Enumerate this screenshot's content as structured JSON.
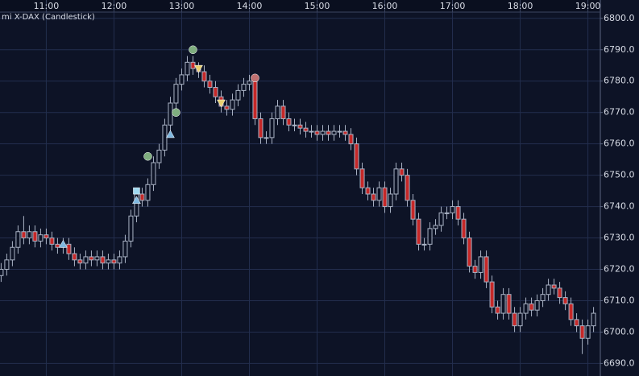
{
  "chart_data": {
    "type": "candlestick",
    "title": "mi X-DAX (Candlestick)",
    "x": [
      620,
      625,
      630,
      635,
      640,
      645,
      650,
      655,
      660,
      665,
      670,
      675,
      680,
      685,
      690,
      695,
      700,
      705,
      710,
      715,
      720,
      725,
      730,
      735,
      740,
      745,
      750,
      755,
      760,
      765,
      770,
      775,
      780,
      785,
      790,
      795,
      800,
      805,
      810,
      815,
      820,
      825,
      830,
      835,
      840,
      845,
      850,
      855,
      860,
      865,
      870,
      875,
      880,
      885,
      890,
      895,
      900,
      905,
      910,
      915,
      920,
      925,
      930,
      935,
      940,
      945,
      950,
      955,
      960,
      965,
      970,
      975,
      980,
      985,
      990,
      995,
      1000,
      1005,
      1010,
      1015,
      1020,
      1025,
      1030,
      1035,
      1040,
      1045,
      1050,
      1055,
      1060,
      1065,
      1070,
      1075,
      1080,
      1085,
      1090,
      1095,
      1100,
      1105,
      1110,
      1115,
      1120,
      1125,
      1130,
      1135,
      1140,
      1145
    ],
    "open": [
      6718,
      6720,
      6723,
      6727,
      6732,
      6730,
      6732,
      6729,
      6731,
      6730,
      6728,
      6727,
      6728,
      6725,
      6723,
      6722,
      6724,
      6723,
      6724,
      6722,
      6723,
      6722,
      6724,
      6729,
      6737,
      6744,
      6742,
      6747,
      6754,
      6758,
      6766,
      6773,
      6779,
      6782,
      6786,
      6784,
      6783,
      6780,
      6778,
      6775,
      6772,
      6771,
      6774,
      6777,
      6779,
      6780,
      6768,
      6762,
      6762,
      6768,
      6772,
      6768,
      6766,
      6766,
      6765,
      6764,
      6764,
      6763,
      6764,
      6763,
      6764,
      6764,
      6763,
      6760,
      6752,
      6746,
      6744,
      6742,
      6746,
      6740,
      6744,
      6752,
      6750,
      6742,
      6736,
      6728,
      6728,
      6733,
      6734,
      6738,
      6738,
      6740,
      6736,
      6730,
      6721,
      6719,
      6724,
      6716,
      6708,
      6706,
      6712,
      6706,
      6702,
      6706,
      6709,
      6707,
      6710,
      6712,
      6715,
      6714,
      6711,
      6709,
      6704,
      6702,
      6698,
      6702
    ],
    "high": [
      6722,
      6725,
      6729,
      6734,
      6737,
      6734,
      6734,
      6733,
      6733,
      6732,
      6730,
      6730,
      6730,
      6727,
      6725,
      6726,
      6726,
      6726,
      6726,
      6725,
      6725,
      6726,
      6731,
      6739,
      6746,
      6746,
      6749,
      6756,
      6760,
      6768,
      6775,
      6781,
      6784,
      6788,
      6788,
      6786,
      6785,
      6782,
      6780,
      6777,
      6774,
      6776,
      6779,
      6781,
      6782,
      6782,
      6770,
      6764,
      6770,
      6774,
      6774,
      6770,
      6768,
      6768,
      6767,
      6766,
      6766,
      6766,
      6766,
      6766,
      6766,
      6766,
      6765,
      6762,
      6754,
      6748,
      6746,
      6748,
      6748,
      6746,
      6754,
      6754,
      6752,
      6744,
      6738,
      6730,
      6735,
      6736,
      6740,
      6740,
      6742,
      6742,
      6738,
      6732,
      6723,
      6726,
      6726,
      6718,
      6710,
      6714,
      6714,
      6708,
      6708,
      6711,
      6711,
      6712,
      6714,
      6717,
      6717,
      6716,
      6713,
      6711,
      6706,
      6704,
      6704,
      6708
    ],
    "low": [
      6716,
      6718,
      6721,
      6725,
      6728,
      6728,
      6727,
      6727,
      6728,
      6726,
      6725,
      6725,
      6723,
      6721,
      6720,
      6720,
      6721,
      6721,
      6720,
      6720,
      6720,
      6720,
      6722,
      6727,
      6735,
      6740,
      6740,
      6745,
      6752,
      6756,
      6764,
      6771,
      6777,
      6780,
      6782,
      6781,
      6778,
      6776,
      6773,
      6770,
      6769,
      6769,
      6772,
      6775,
      6777,
      6766,
      6760,
      6760,
      6760,
      6766,
      6766,
      6764,
      6764,
      6763,
      6762,
      6762,
      6761,
      6761,
      6761,
      6761,
      6762,
      6761,
      6758,
      6750,
      6744,
      6742,
      6740,
      6740,
      6738,
      6738,
      6742,
      6748,
      6740,
      6734,
      6726,
      6726,
      6726,
      6731,
      6732,
      6736,
      6736,
      6734,
      6728,
      6719,
      6717,
      6717,
      6714,
      6706,
      6704,
      6704,
      6704,
      6700,
      6700,
      6704,
      6705,
      6705,
      6708,
      6710,
      6712,
      6709,
      6707,
      6702,
      6700,
      6693,
      6696,
      6700
    ],
    "close": [
      6720,
      6723,
      6727,
      6732,
      6730,
      6732,
      6729,
      6731,
      6730,
      6728,
      6727,
      6728,
      6725,
      6723,
      6722,
      6724,
      6723,
      6724,
      6722,
      6723,
      6722,
      6724,
      6729,
      6737,
      6744,
      6742,
      6747,
      6754,
      6758,
      6766,
      6773,
      6779,
      6782,
      6786,
      6784,
      6783,
      6780,
      6778,
      6775,
      6772,
      6771,
      6774,
      6777,
      6779,
      6780,
      6768,
      6762,
      6762,
      6768,
      6772,
      6768,
      6766,
      6766,
      6765,
      6764,
      6764,
      6763,
      6764,
      6763,
      6764,
      6764,
      6763,
      6760,
      6752,
      6746,
      6744,
      6742,
      6746,
      6740,
      6744,
      6752,
      6750,
      6742,
      6736,
      6728,
      6728,
      6733,
      6734,
      6738,
      6738,
      6740,
      6736,
      6730,
      6721,
      6719,
      6724,
      6716,
      6708,
      6706,
      6712,
      6706,
      6702,
      6706,
      6709,
      6707,
      6710,
      6712,
      6715,
      6714,
      6711,
      6709,
      6704,
      6702,
      6698,
      6702,
      6706
    ],
    "up_color": "#0d1326",
    "down_color": "#c62828",
    "wick_color": "#aab3c5",
    "xlim": [
      619,
      1151
    ],
    "xticks": [
      {
        "value": 660,
        "label": "11:00"
      },
      {
        "value": 720,
        "label": "12:00"
      },
      {
        "value": 780,
        "label": "13:00"
      },
      {
        "value": 840,
        "label": "14:00"
      },
      {
        "value": 900,
        "label": "15:00"
      },
      {
        "value": 960,
        "label": "16:00"
      },
      {
        "value": 1020,
        "label": "17:00"
      },
      {
        "value": 1080,
        "label": "18:00"
      },
      {
        "value": 1140,
        "label": "19:00"
      }
    ],
    "ylim": [
      6686,
      6802
    ],
    "yticks": [
      {
        "value": 6690,
        "label": "6690.0"
      },
      {
        "value": 6700,
        "label": "6700.0"
      },
      {
        "value": 6710,
        "label": "6710.0"
      },
      {
        "value": 6720,
        "label": "6720.0"
      },
      {
        "value": 6730,
        "label": "6730.0"
      },
      {
        "value": 6740,
        "label": "6740.0"
      },
      {
        "value": 6750,
        "label": "6750.0"
      },
      {
        "value": 6760,
        "label": "6760.0"
      },
      {
        "value": 6770,
        "label": "6770.0"
      },
      {
        "value": 6780,
        "label": "6780.0"
      },
      {
        "value": 6790,
        "label": "6790.0"
      },
      {
        "value": 6800,
        "label": "6800.0"
      }
    ],
    "grid": true,
    "markers": [
      {
        "x": 675,
        "y": 6728,
        "shape": "triangle-up",
        "color": "#7fb8e0"
      },
      {
        "x": 740,
        "y": 6745,
        "shape": "square",
        "color": "#9fd8f0"
      },
      {
        "x": 740,
        "y": 6742,
        "shape": "triangle-up",
        "color": "#7fb8e0"
      },
      {
        "x": 750,
        "y": 6756,
        "shape": "circle",
        "color": "#7fae7f"
      },
      {
        "x": 770,
        "y": 6763,
        "shape": "triangle-up",
        "color": "#7fb8e0"
      },
      {
        "x": 775,
        "y": 6770,
        "shape": "circle",
        "color": "#7fae7f"
      },
      {
        "x": 790,
        "y": 6790,
        "shape": "circle",
        "color": "#7fae7f"
      },
      {
        "x": 795,
        "y": 6784,
        "shape": "triangle-down",
        "color": "#e8d070"
      },
      {
        "x": 815,
        "y": 6773,
        "shape": "triangle-down",
        "color": "#e8d070"
      },
      {
        "x": 845,
        "y": 6781,
        "shape": "circle",
        "color": "#c07070"
      }
    ]
  }
}
